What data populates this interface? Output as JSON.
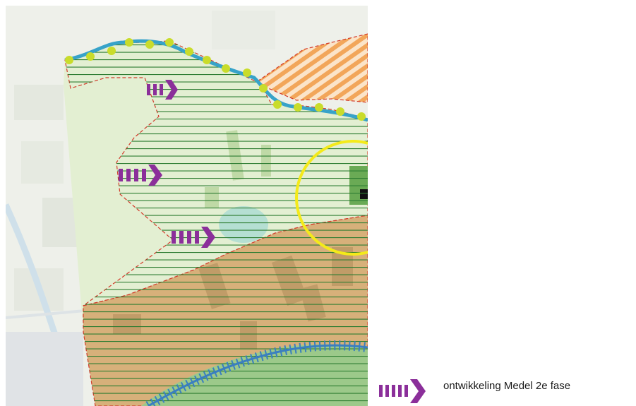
{
  "legend": {
    "items": [
      {
        "label": "ontwikkeling Medel 2e fase",
        "icon": "purple-chevron-arrow-icon",
        "color": "#8b2f9a"
      }
    ]
  },
  "colors": {
    "arrow": "#8b2f9a",
    "hatch": "#2e7d32",
    "green_zone": "#e3efd2",
    "orange_zone": "#d7b07a",
    "forest": "#9cc98a",
    "yellow_circle": "#f4ea1a",
    "boundary_dots": "#c9dc2b",
    "blue_line": "#37a3c9",
    "red_dash": "#d23a2a"
  }
}
